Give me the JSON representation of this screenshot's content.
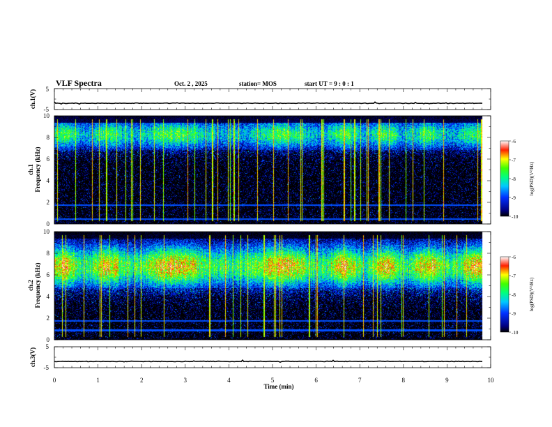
{
  "header": {
    "title": "VLF Spectra",
    "date": "Oct. 2 , 2025",
    "station": "station= MOS",
    "start": "start UT =  9 : 0 : 1"
  },
  "chart_data": [
    {
      "type": "line",
      "name": "ch1-waveform",
      "ylabel": "ch.1(V)",
      "ylim": [
        -5,
        5
      ],
      "yticks": [
        "5",
        "-5"
      ],
      "xlim": [
        0,
        10
      ],
      "level": -2
    },
    {
      "type": "heatmap",
      "name": "ch1-spectrogram",
      "ylabel_lines": [
        "ch.1",
        "Frequency (kHz)"
      ],
      "ylim": [
        0,
        10
      ],
      "yticks": [
        "0",
        "2",
        "4",
        "6",
        "8",
        "10"
      ],
      "xlim": [
        0,
        10
      ],
      "data_end": 9.8,
      "band_center": 8.3,
      "band_spread": 1.4,
      "band_intensity": 0.55,
      "lines_khz": [
        0.5,
        1.8
      ],
      "colorbar": {
        "min": -10,
        "max": -6,
        "ticks": [
          "-6",
          "-7",
          "-8",
          "-9",
          "-10"
        ],
        "label": "log(PSD)(V²/Hz)"
      }
    },
    {
      "type": "heatmap",
      "name": "ch2-spectrogram",
      "ylabel_lines": [
        "ch.2",
        "Frequency (kHz)"
      ],
      "ylim": [
        0,
        10
      ],
      "yticks": [
        "0",
        "2",
        "4",
        "6",
        "8",
        "10"
      ],
      "xlim": [
        0,
        10
      ],
      "data_end": 9.8,
      "band_center": 6.8,
      "band_spread": 2.0,
      "band_intensity": 0.75,
      "lines_khz": [
        0.9,
        1.8
      ],
      "colorbar": {
        "min": -10,
        "max": -6,
        "ticks": [
          "-6",
          "-7",
          "-8",
          "-9",
          "-10"
        ],
        "label": "log(PSD)(V²/Hz)"
      }
    },
    {
      "type": "line",
      "name": "ch3-waveform",
      "ylabel": "ch.3(V)",
      "ylim": [
        -5,
        5
      ],
      "yticks": [
        "5",
        "-5"
      ],
      "xlim": [
        0,
        10
      ],
      "level": -2,
      "xlabel": "Time (min)",
      "xticks": [
        "0",
        "1",
        "2",
        "3",
        "4",
        "5",
        "6",
        "7",
        "8",
        "9",
        "10"
      ]
    }
  ]
}
